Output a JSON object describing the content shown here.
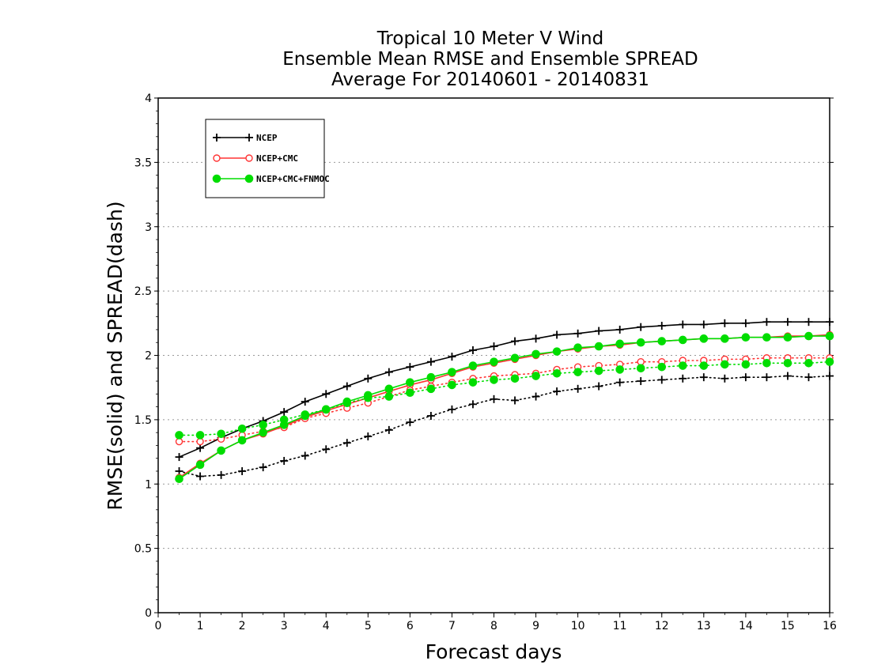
{
  "chart_data": {
    "type": "line",
    "title": [
      "Tropical 10 Meter V Wind",
      "Ensemble Mean RMSE and Ensemble SPREAD",
      "Average For 20140601 - 20140831"
    ],
    "xlabel": "Forecast days",
    "ylabel": "RMSE(solid) and SPREAD(dash)",
    "xlim": [
      0,
      16
    ],
    "ylim": [
      0,
      4
    ],
    "xticks": [
      "0",
      "1",
      "2",
      "3",
      "4",
      "5",
      "6",
      "7",
      "8",
      "9",
      "10",
      "11",
      "12",
      "13",
      "14",
      "15",
      "16"
    ],
    "yticks": [
      "0",
      "0.5",
      "1",
      "1.5",
      "2",
      "2.5",
      "3",
      "3.5",
      "4"
    ],
    "grid": "horizontal dotted",
    "legend_position": "top-left",
    "x": [
      0.5,
      1,
      1.5,
      2,
      2.5,
      3,
      3.5,
      4,
      4.5,
      5,
      5.5,
      6,
      6.5,
      7,
      7.5,
      8,
      8.5,
      9,
      9.5,
      10,
      10.5,
      11,
      11.5,
      12,
      12.5,
      13,
      13.5,
      14,
      14.5,
      15,
      15.5,
      16
    ],
    "series": [
      {
        "name": "NCEP",
        "color": "#000000",
        "marker": "plus",
        "rmse": [
          1.21,
          1.28,
          1.36,
          1.43,
          1.49,
          1.56,
          1.64,
          1.7,
          1.76,
          1.82,
          1.87,
          1.91,
          1.95,
          1.99,
          2.04,
          2.07,
          2.11,
          2.13,
          2.16,
          2.17,
          2.19,
          2.2,
          2.22,
          2.23,
          2.24,
          2.24,
          2.25,
          2.25,
          2.26,
          2.26,
          2.26,
          2.26
        ],
        "spread": [
          1.1,
          1.06,
          1.07,
          1.1,
          1.13,
          1.18,
          1.22,
          1.27,
          1.32,
          1.37,
          1.42,
          1.48,
          1.53,
          1.58,
          1.62,
          1.66,
          1.65,
          1.68,
          1.72,
          1.74,
          1.76,
          1.79,
          1.8,
          1.81,
          1.82,
          1.83,
          1.82,
          1.83,
          1.83,
          1.84,
          1.83,
          1.84
        ]
      },
      {
        "name": "NCEP+CMC",
        "color": "#ff3333",
        "marker": "open-circle",
        "rmse": [
          1.05,
          1.16,
          1.26,
          1.34,
          1.39,
          1.45,
          1.52,
          1.57,
          1.62,
          1.67,
          1.72,
          1.77,
          1.81,
          1.86,
          1.91,
          1.94,
          1.97,
          2.0,
          2.03,
          2.05,
          2.07,
          2.08,
          2.1,
          2.11,
          2.12,
          2.13,
          2.13,
          2.14,
          2.14,
          2.15,
          2.15,
          2.16
        ],
        "spread": [
          1.33,
          1.33,
          1.35,
          1.38,
          1.41,
          1.44,
          1.51,
          1.55,
          1.59,
          1.63,
          1.68,
          1.73,
          1.76,
          1.79,
          1.82,
          1.84,
          1.85,
          1.86,
          1.89,
          1.91,
          1.92,
          1.93,
          1.95,
          1.95,
          1.96,
          1.96,
          1.97,
          1.97,
          1.98,
          1.98,
          1.98,
          1.98
        ]
      },
      {
        "name": "NCEP+CMC+FNMOC",
        "color": "#00dd00",
        "marker": "filled-circle",
        "rmse": [
          1.04,
          1.15,
          1.26,
          1.34,
          1.4,
          1.46,
          1.53,
          1.58,
          1.64,
          1.69,
          1.74,
          1.79,
          1.83,
          1.87,
          1.92,
          1.95,
          1.98,
          2.01,
          2.03,
          2.06,
          2.07,
          2.09,
          2.1,
          2.11,
          2.12,
          2.13,
          2.13,
          2.14,
          2.14,
          2.14,
          2.15,
          2.15
        ],
        "spread": [
          1.38,
          1.38,
          1.39,
          1.43,
          1.46,
          1.5,
          1.54,
          1.58,
          1.63,
          1.67,
          1.68,
          1.71,
          1.74,
          1.77,
          1.79,
          1.81,
          1.82,
          1.84,
          1.86,
          1.87,
          1.88,
          1.89,
          1.9,
          1.91,
          1.92,
          1.92,
          1.93,
          1.93,
          1.94,
          1.94,
          1.94,
          1.95
        ]
      }
    ]
  }
}
